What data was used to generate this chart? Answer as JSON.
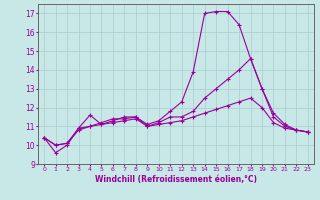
{
  "xlabel": "Windchill (Refroidissement éolien,°C)",
  "x": [
    0,
    1,
    2,
    3,
    4,
    5,
    6,
    7,
    8,
    9,
    10,
    11,
    12,
    13,
    14,
    15,
    16,
    17,
    18,
    19,
    20,
    21,
    22,
    23
  ],
  "line1": [
    10.4,
    9.6,
    10.0,
    10.9,
    11.6,
    11.1,
    11.3,
    11.5,
    11.5,
    11.1,
    11.3,
    11.8,
    12.3,
    13.9,
    17.0,
    17.1,
    17.1,
    16.4,
    14.6,
    13.0,
    11.7,
    11.1,
    10.8,
    10.7
  ],
  "line2": [
    10.4,
    10.0,
    10.1,
    10.9,
    11.0,
    11.2,
    11.4,
    11.4,
    11.5,
    11.0,
    11.2,
    11.5,
    11.5,
    11.8,
    12.5,
    13.0,
    13.5,
    14.0,
    14.6,
    13.0,
    11.5,
    11.0,
    10.8,
    10.7
  ],
  "line3": [
    10.4,
    10.0,
    10.1,
    10.8,
    11.0,
    11.1,
    11.2,
    11.3,
    11.4,
    11.0,
    11.1,
    11.2,
    11.3,
    11.5,
    11.7,
    11.9,
    12.1,
    12.3,
    12.5,
    12.0,
    11.2,
    10.9,
    10.8,
    10.7
  ],
  "ylim": [
    9,
    17.5
  ],
  "yticks": [
    9,
    10,
    11,
    12,
    13,
    14,
    15,
    16,
    17
  ],
  "line_color": "#990099",
  "bg_color": "#c8e8e8",
  "grid_color": "#aacccc",
  "marker": "+",
  "marker_size": 3,
  "linewidth": 0.8
}
